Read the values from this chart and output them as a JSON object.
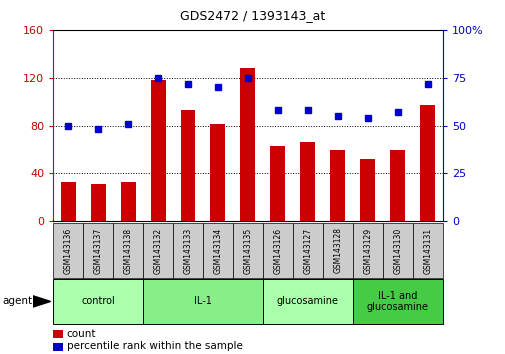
{
  "title": "GDS2472 / 1393143_at",
  "samples": [
    "GSM143136",
    "GSM143137",
    "GSM143138",
    "GSM143132",
    "GSM143133",
    "GSM143134",
    "GSM143135",
    "GSM143126",
    "GSM143127",
    "GSM143128",
    "GSM143129",
    "GSM143130",
    "GSM143131"
  ],
  "counts": [
    33,
    31,
    33,
    118,
    93,
    81,
    128,
    63,
    66,
    60,
    52,
    60,
    97
  ],
  "percentiles": [
    50,
    48,
    51,
    75,
    72,
    70,
    75,
    58,
    58,
    55,
    54,
    57,
    72
  ],
  "groups": [
    {
      "label": "control",
      "start": 0,
      "end": 3,
      "color": "#aaffaa"
    },
    {
      "label": "IL-1",
      "start": 3,
      "end": 7,
      "color": "#88ee88"
    },
    {
      "label": "glucosamine",
      "start": 7,
      "end": 10,
      "color": "#aaffaa"
    },
    {
      "label": "IL-1 and\nglucosamine",
      "start": 10,
      "end": 13,
      "color": "#44cc44"
    }
  ],
  "bar_color": "#cc0000",
  "dot_color": "#0000cc",
  "ylim_left": [
    0,
    160
  ],
  "ylim_right": [
    0,
    100
  ],
  "yticks_left": [
    0,
    40,
    80,
    120,
    160
  ],
  "yticks_right": [
    0,
    25,
    50,
    75,
    100
  ],
  "bg_color": "#ffffff",
  "tick_area_color": "#cccccc",
  "left_axis_color": "#cc0000",
  "right_axis_color": "#0000cc",
  "title_fontsize": 9,
  "bar_width": 0.5
}
